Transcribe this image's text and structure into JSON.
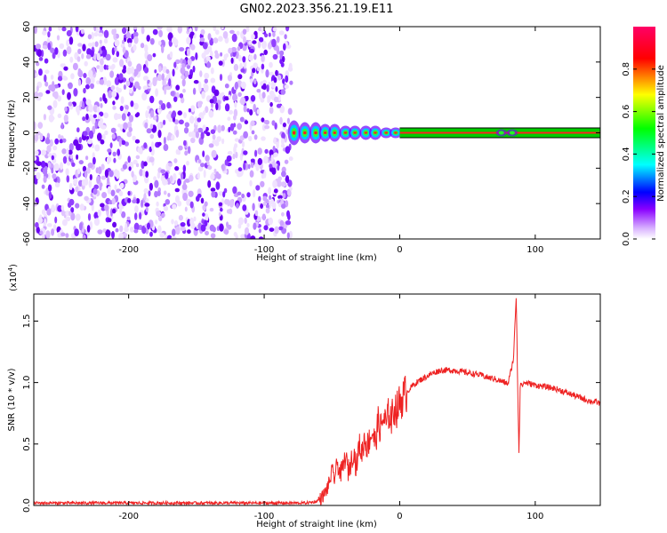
{
  "page_title": "GN02.2023.356.21.19.E11",
  "chart_data": [
    {
      "type": "heatmap",
      "xlabel": "Height of straight line (km)",
      "ylabel": "Frequency (Hz)",
      "xlim": [
        -270,
        148
      ],
      "ylim": [
        -60,
        60
      ],
      "xticks": [
        -200,
        -100,
        0,
        100
      ],
      "yticks": [
        -60,
        -40,
        -20,
        0,
        20,
        40,
        60
      ],
      "noise_region_x": [
        -270,
        -80
      ],
      "signal_band_hz": [
        -2,
        2
      ],
      "blob_x": [
        -78,
        -70,
        -62,
        -55,
        -48,
        -40,
        -33,
        -25,
        -18,
        -10,
        -3
      ],
      "blob_width_hz": [
        7,
        6,
        6,
        5,
        5,
        4,
        4,
        4,
        4,
        3,
        3
      ],
      "band_x": [
        0,
        148
      ],
      "grid": false,
      "colorbar": {
        "label": "Normalized spectral amplitude",
        "range": [
          0,
          1
        ],
        "ticks": [
          0.0,
          0.2,
          0.4,
          0.6,
          0.8
        ],
        "colors": [
          "#ffffff",
          "#8a00ff",
          "#0000ff",
          "#00ffff",
          "#00ff00",
          "#ffff00",
          "#ff0000",
          "#ff0066"
        ]
      }
    },
    {
      "type": "line",
      "xlabel": "Height of straight line (km)",
      "ylabel": "SNR (10 * v/v)",
      "multiplier": "(x10",
      "multiplier_exp": "4",
      "multiplier_close": ")",
      "xlim": [
        -270,
        148
      ],
      "ylim": [
        0,
        1.72
      ],
      "xticks": [
        -200,
        -100,
        0,
        100
      ],
      "yticks": [
        0.0,
        0.5,
        1.0,
        1.5
      ],
      "ytick_labels": [
        "0.0",
        "0.5",
        "1.0",
        "1.5"
      ],
      "grid": false,
      "series": [
        {
          "color": "#ee2222",
          "x": [
            -270,
            -200,
            -150,
            -100,
            -70,
            -62,
            -58,
            -55,
            -52,
            -50,
            -48,
            -46,
            -44,
            -42,
            -40,
            -38,
            -36,
            -34,
            -32,
            -30,
            -28,
            -26,
            -24,
            -22,
            -20,
            -18,
            -16,
            -14,
            -12,
            -10,
            -8,
            -6,
            -4,
            -2,
            0,
            5,
            10,
            15,
            20,
            25,
            30,
            35,
            40,
            45,
            50,
            55,
            60,
            65,
            70,
            75,
            80,
            84,
            86,
            87,
            88,
            89,
            90,
            92,
            96,
            100,
            105,
            110,
            115,
            120,
            125,
            130,
            135,
            140,
            145,
            148
          ],
          "y": [
            0.02,
            0.02,
            0.02,
            0.02,
            0.02,
            0.03,
            0.06,
            0.1,
            0.18,
            0.28,
            0.22,
            0.35,
            0.25,
            0.3,
            0.4,
            0.28,
            0.35,
            0.45,
            0.3,
            0.5,
            0.42,
            0.55,
            0.48,
            0.55,
            0.6,
            0.5,
            0.68,
            0.62,
            0.72,
            0.65,
            0.76,
            0.7,
            0.8,
            0.78,
            0.84,
            0.92,
            0.98,
            1.02,
            1.05,
            1.08,
            1.1,
            1.1,
            1.1,
            1.09,
            1.08,
            1.07,
            1.06,
            1.04,
            1.03,
            1.01,
            0.99,
            1.2,
            1.72,
            0.98,
            0.42,
            1.02,
            0.97,
            1.0,
            0.99,
            0.98,
            0.97,
            0.96,
            0.95,
            0.93,
            0.91,
            0.89,
            0.87,
            0.85,
            0.84,
            0.83
          ]
        }
      ]
    }
  ]
}
